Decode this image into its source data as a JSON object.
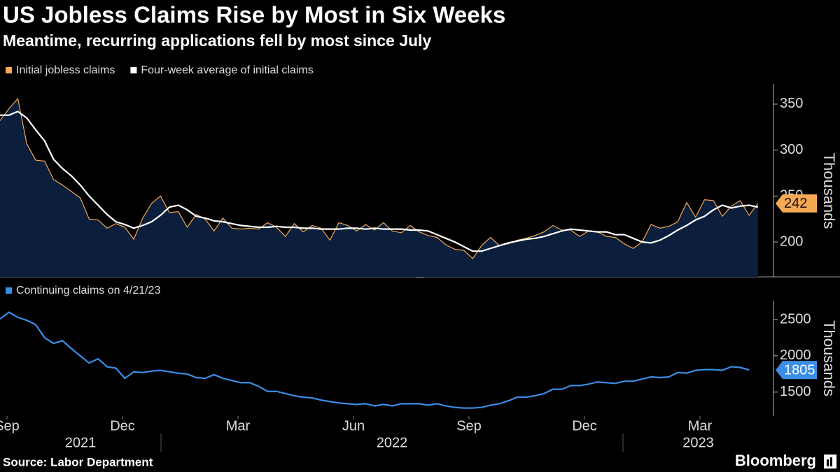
{
  "source": "Source: Labor Department",
  "brand": "Bloomberg",
  "chart_data": [
    {
      "type": "line",
      "title": "US Jobless Claims Rise by Most in Six Weeks",
      "subtitle": "Meantime, recurring applications fell by most since July",
      "y_label": "Thousands",
      "area_color": "#0b1f3c",
      "ylim": [
        162,
        372
      ],
      "yticks": [
        200,
        250,
        300,
        350
      ],
      "series": [
        {
          "name": "Initial jobless claims",
          "color": "#f5a953",
          "values": [
            332,
            345,
            356,
            307,
            289,
            288,
            268,
            262,
            255,
            248,
            225,
            224,
            215,
            220,
            216,
            203,
            226,
            242,
            250,
            232,
            233,
            216,
            230,
            225,
            212,
            226,
            215,
            214,
            215,
            214,
            221,
            216,
            206,
            220,
            211,
            218,
            215,
            202,
            221,
            218,
            212,
            219,
            213,
            221,
            212,
            210,
            218,
            211,
            207,
            205,
            197,
            192,
            191,
            182,
            196,
            205,
            196,
            198,
            202,
            204,
            207,
            211,
            218,
            213,
            213,
            206,
            212,
            211,
            206,
            205,
            198,
            193,
            200,
            219,
            215,
            217,
            222,
            243,
            227,
            246,
            245,
            228,
            239,
            245,
            229,
            242
          ]
        },
        {
          "name": "Four-week average of initial claims",
          "color": "#ffffff",
          "values": [
            338,
            338,
            342,
            335,
            322,
            310,
            290,
            280,
            272,
            262,
            250,
            240,
            230,
            222,
            219,
            215,
            218,
            222,
            229,
            238,
            240,
            235,
            228,
            226,
            223,
            222,
            220,
            218,
            217,
            216,
            216,
            217,
            216,
            216,
            215,
            215,
            214,
            214,
            214,
            215,
            215,
            214,
            215,
            214,
            214,
            214,
            213,
            213,
            212,
            208,
            204,
            200,
            195,
            190,
            190,
            193,
            196,
            199,
            201,
            203,
            204,
            206,
            209,
            212,
            214,
            213,
            212,
            211,
            211,
            208,
            208,
            204,
            200,
            199,
            202,
            207,
            213,
            218,
            224,
            228,
            235,
            240,
            237,
            239,
            240,
            238
          ]
        }
      ]
    },
    {
      "type": "line",
      "y_label": "Thousands",
      "ylim": [
        1170,
        2760
      ],
      "yticks": [
        1500,
        2000,
        2500
      ],
      "xlim": [
        "2021-08",
        "2023-04"
      ],
      "xticks": [
        {
          "value": "2021-09",
          "label": "Sep"
        },
        {
          "value": "2021-12",
          "label": "Dec"
        },
        {
          "value": "2022-03",
          "label": "Mar"
        },
        {
          "value": "2022-06",
          "label": "Jun"
        },
        {
          "value": "2022-09",
          "label": "Sep"
        },
        {
          "value": "2022-12",
          "label": "Dec"
        },
        {
          "value": "2023-03",
          "label": "Mar"
        }
      ],
      "years": [
        "2021",
        "2022",
        "2023"
      ],
      "series": [
        {
          "name": "Continuing claims on 4/21/23",
          "color": "#3a8ee6",
          "values": [
            2510,
            2600,
            2530,
            2490,
            2430,
            2250,
            2170,
            2210,
            2100,
            2000,
            1900,
            1960,
            1850,
            1830,
            1690,
            1780,
            1770,
            1790,
            1800,
            1780,
            1760,
            1750,
            1700,
            1690,
            1740,
            1690,
            1660,
            1630,
            1630,
            1580,
            1510,
            1510,
            1480,
            1450,
            1430,
            1420,
            1390,
            1370,
            1350,
            1340,
            1330,
            1340,
            1310,
            1330,
            1310,
            1340,
            1340,
            1340,
            1320,
            1340,
            1310,
            1290,
            1280,
            1280,
            1290,
            1320,
            1340,
            1380,
            1430,
            1430,
            1450,
            1480,
            1540,
            1540,
            1590,
            1590,
            1610,
            1640,
            1630,
            1620,
            1650,
            1650,
            1680,
            1710,
            1700,
            1710,
            1770,
            1760,
            1800,
            1810,
            1810,
            1800,
            1850,
            1840,
            1805
          ]
        }
      ]
    }
  ]
}
